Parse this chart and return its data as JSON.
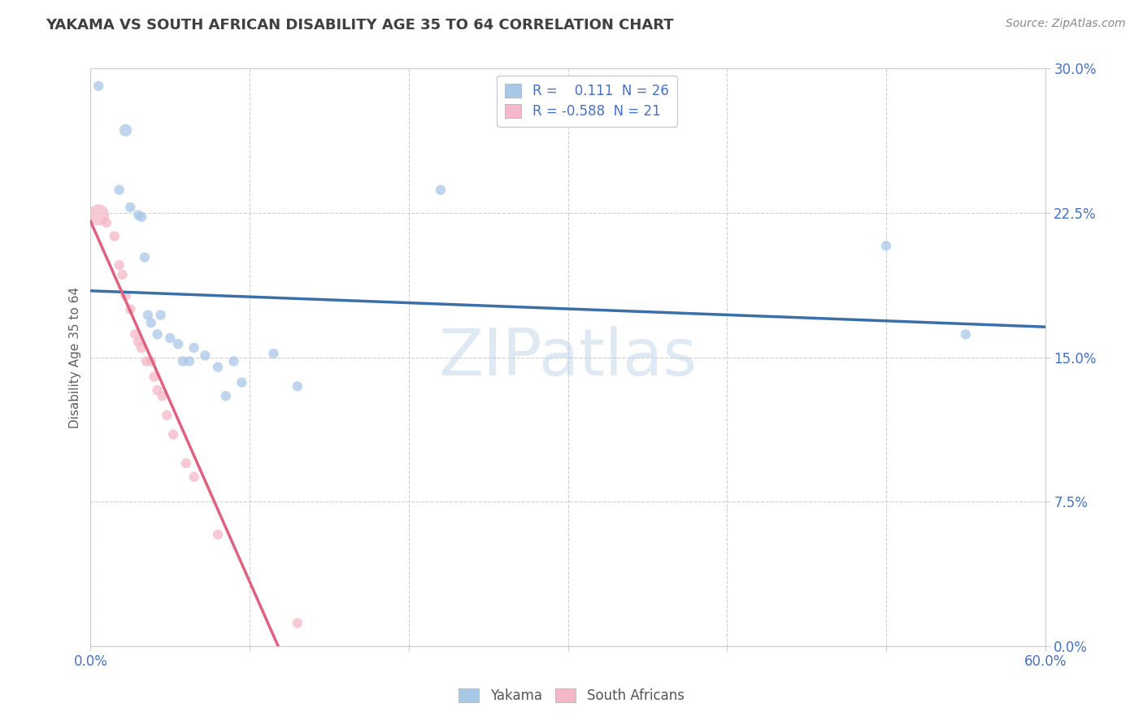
{
  "title": "YAKAMA VS SOUTH AFRICAN DISABILITY AGE 35 TO 64 CORRELATION CHART",
  "source": "Source: ZipAtlas.com",
  "ylabel": "Disability Age 35 to 64",
  "xlim": [
    0.0,
    0.6
  ],
  "ylim": [
    0.0,
    0.3
  ],
  "xticks": [
    0.0,
    0.1,
    0.2,
    0.3,
    0.4,
    0.5,
    0.6
  ],
  "xtick_labels": [
    "0.0%",
    "",
    "",
    "",
    "",
    "",
    "60.0%"
  ],
  "yticks": [
    0.0,
    0.075,
    0.15,
    0.225,
    0.3
  ],
  "ytick_labels": [
    "0.0%",
    "7.5%",
    "15.0%",
    "22.5%",
    "30.0%"
  ],
  "legend_r1_text": "R =    0.111  N = 26",
  "legend_r2_text": "R = -0.588  N = 21",
  "yakama_color": "#a8c8e8",
  "sa_color": "#f4b8c8",
  "yakama_line_color": "#3a6fa8",
  "sa_line_color": "#e06080",
  "watermark": "ZIPatlas",
  "legend_text_color": "#4472c4",
  "tick_color": "#4472c4",
  "grid_color": "#d0d0d0",
  "title_color": "#404040",
  "source_color": "#888888",
  "ylabel_color": "#606060",
  "yakama_points": [
    [
      0.005,
      0.291
    ],
    [
      0.018,
      0.237
    ],
    [
      0.022,
      0.268
    ],
    [
      0.025,
      0.228
    ],
    [
      0.03,
      0.224
    ],
    [
      0.032,
      0.223
    ],
    [
      0.034,
      0.202
    ],
    [
      0.036,
      0.172
    ],
    [
      0.038,
      0.168
    ],
    [
      0.042,
      0.162
    ],
    [
      0.044,
      0.172
    ],
    [
      0.05,
      0.16
    ],
    [
      0.055,
      0.157
    ],
    [
      0.058,
      0.148
    ],
    [
      0.062,
      0.148
    ],
    [
      0.065,
      0.155
    ],
    [
      0.072,
      0.151
    ],
    [
      0.08,
      0.145
    ],
    [
      0.085,
      0.13
    ],
    [
      0.09,
      0.148
    ],
    [
      0.095,
      0.137
    ],
    [
      0.115,
      0.152
    ],
    [
      0.13,
      0.135
    ],
    [
      0.22,
      0.237
    ],
    [
      0.5,
      0.208
    ],
    [
      0.55,
      0.162
    ]
  ],
  "sa_points": [
    [
      0.005,
      0.224
    ],
    [
      0.01,
      0.22
    ],
    [
      0.015,
      0.213
    ],
    [
      0.018,
      0.198
    ],
    [
      0.02,
      0.193
    ],
    [
      0.022,
      0.182
    ],
    [
      0.025,
      0.175
    ],
    [
      0.028,
      0.162
    ],
    [
      0.03,
      0.158
    ],
    [
      0.032,
      0.155
    ],
    [
      0.035,
      0.148
    ],
    [
      0.038,
      0.148
    ],
    [
      0.04,
      0.14
    ],
    [
      0.042,
      0.133
    ],
    [
      0.045,
      0.13
    ],
    [
      0.048,
      0.12
    ],
    [
      0.052,
      0.11
    ],
    [
      0.06,
      0.095
    ],
    [
      0.065,
      0.088
    ],
    [
      0.08,
      0.058
    ],
    [
      0.13,
      0.012
    ]
  ],
  "yakama_sizes": [
    80,
    80,
    120,
    80,
    80,
    80,
    80,
    80,
    80,
    80,
    80,
    80,
    80,
    80,
    80,
    80,
    80,
    80,
    80,
    80,
    80,
    80,
    80,
    80,
    80,
    80
  ],
  "sa_sizes": [
    350,
    80,
    80,
    80,
    80,
    80,
    80,
    80,
    80,
    80,
    80,
    80,
    80,
    80,
    80,
    80,
    80,
    80,
    80,
    80,
    80
  ]
}
